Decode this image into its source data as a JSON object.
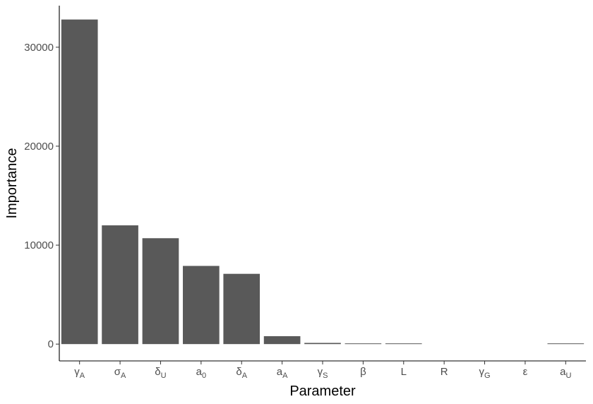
{
  "chart_data": {
    "type": "bar",
    "title": "",
    "xlabel": "Parameter",
    "ylabel": "Importance",
    "ylim": [
      -1700,
      34200
    ],
    "yticks": [
      0,
      10000,
      20000,
      30000
    ],
    "grid": false,
    "categories": [
      {
        "base": "γ",
        "sub": "A"
      },
      {
        "base": "σ",
        "sub": "A"
      },
      {
        "base": "δ",
        "sub": "U"
      },
      {
        "base": "a",
        "sub": "0"
      },
      {
        "base": "δ",
        "sub": "A"
      },
      {
        "base": "a",
        "sub": "A"
      },
      {
        "base": "γ",
        "sub": "S"
      },
      {
        "base": "β",
        "sub": ""
      },
      {
        "base": "L",
        "sub": ""
      },
      {
        "base": "R",
        "sub": ""
      },
      {
        "base": "γ",
        "sub": "G"
      },
      {
        "base": "ε",
        "sub": ""
      },
      {
        "base": "a",
        "sub": "U"
      }
    ],
    "values": [
      32800,
      12000,
      10700,
      7900,
      7100,
      800,
      120,
      30,
      25,
      0,
      0,
      0,
      20
    ],
    "bar_color": "#595959"
  }
}
